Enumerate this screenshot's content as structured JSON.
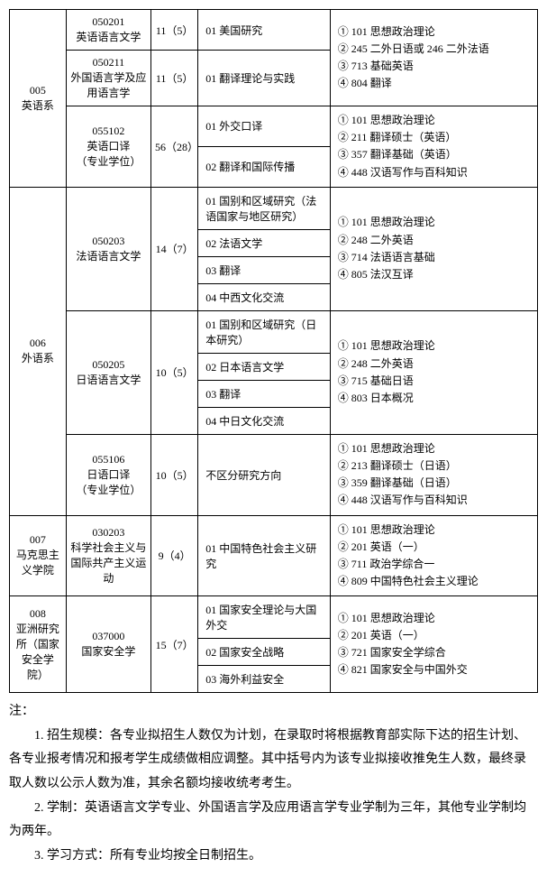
{
  "table": {
    "rows": [
      {
        "dept": "005\n英语系",
        "dept_rows": 4,
        "major": "050201\n英语语言文学",
        "major_rows": 1,
        "num": "11（5）",
        "num_rows": 1,
        "dir": "01 美国研究",
        "exam": "① 101 思想政治理论\n② 245 二外日语或 246 二外法语\n③ 713 基础英语\n④ 804 翻译",
        "exam_rows": 2
      },
      {
        "major": "050211\n外国语言学及应用语言学",
        "major_rows": 1,
        "num": "11（5）",
        "num_rows": 1,
        "dir": "01 翻译理论与实践"
      },
      {
        "major": "055102\n英语口译\n（专业学位）",
        "major_rows": 2,
        "num": "56（28）",
        "num_rows": 2,
        "dir": "01 外交口译",
        "exam": "① 101 思想政治理论\n② 211 翻译硕士（英语）\n③ 357 翻译基础（英语）\n④ 448 汉语写作与百科知识",
        "exam_rows": 2
      },
      {
        "dir": "02 翻译和国际传播"
      },
      {
        "dept": "006\n外语系",
        "dept_rows": 9,
        "major": "050203\n法语语言文学",
        "major_rows": 4,
        "num": "14（7）",
        "num_rows": 4,
        "dir": "01 国别和区域研究（法语国家与地区研究）",
        "exam": "① 101 思想政治理论\n② 248 二外英语\n③ 714 法语语言基础\n④ 805 法汉互译",
        "exam_rows": 4
      },
      {
        "dir": "02 法语文学"
      },
      {
        "dir": "03 翻译"
      },
      {
        "dir": "04 中西文化交流"
      },
      {
        "major": "050205\n日语语言文学",
        "major_rows": 4,
        "num": "10（5）",
        "num_rows": 4,
        "dir": "01 国别和区域研究（日本研究）",
        "exam": "① 101 思想政治理论\n② 248 二外英语\n③ 715 基础日语\n④ 803 日本概况",
        "exam_rows": 4
      },
      {
        "dir": "02 日本语言文学"
      },
      {
        "dir": "03 翻译"
      },
      {
        "dir": "04 中日文化交流"
      },
      {
        "major": "055106\n日语口译\n（专业学位）",
        "major_rows": 1,
        "num": "10（5）",
        "num_rows": 1,
        "dir": "不区分研究方向",
        "exam": "① 101 思想政治理论\n② 213 翻译硕士（日语）\n③ 359 翻译基础（日语）\n④ 448 汉语写作与百科知识",
        "exam_rows": 1
      },
      {
        "dept": "007\n马克思主义学院",
        "dept_rows": 1,
        "major": "030203\n科学社会主义与国际共产主义运动",
        "major_rows": 1,
        "num": "9（4）",
        "num_rows": 1,
        "dir": "01 中国特色社会主义研究",
        "exam": "① 101 思想政治理论\n② 201 英语（一）\n③ 711 政治学综合一\n④ 809 中国特色社会主义理论",
        "exam_rows": 1
      },
      {
        "dept": "008\n亚洲研究所（国家安全学院）",
        "dept_rows": 3,
        "major": "037000\n国家安全学",
        "major_rows": 3,
        "num": "15（7）",
        "num_rows": 3,
        "dir": "01 国家安全理论与大国外交",
        "exam": "① 101 思想政治理论\n② 201 英语（一）\n③ 721 国家安全学综合\n④ 821 国家安全与中国外交",
        "exam_rows": 3
      },
      {
        "dir": "02 国家安全战略"
      },
      {
        "dir": "03 海外利益安全"
      }
    ]
  },
  "notes": {
    "label": "注：",
    "p1": "1. 招生规模：各专业拟招生人数仅为计划，在录取时将根据教育部实际下达的招生计划、各专业报考情况和报考学生成绩做相应调整。其中括号内为该专业拟接收推免生人数，最终录取人数以公示人数为准，其余名额均接收统考考生。",
    "p2": "2. 学制：英语语言文学专业、外国语言学及应用语言学专业学制为三年，其他专业学制均为两年。",
    "p3": "3. 学习方式：所有专业均按全日制招生。"
  }
}
